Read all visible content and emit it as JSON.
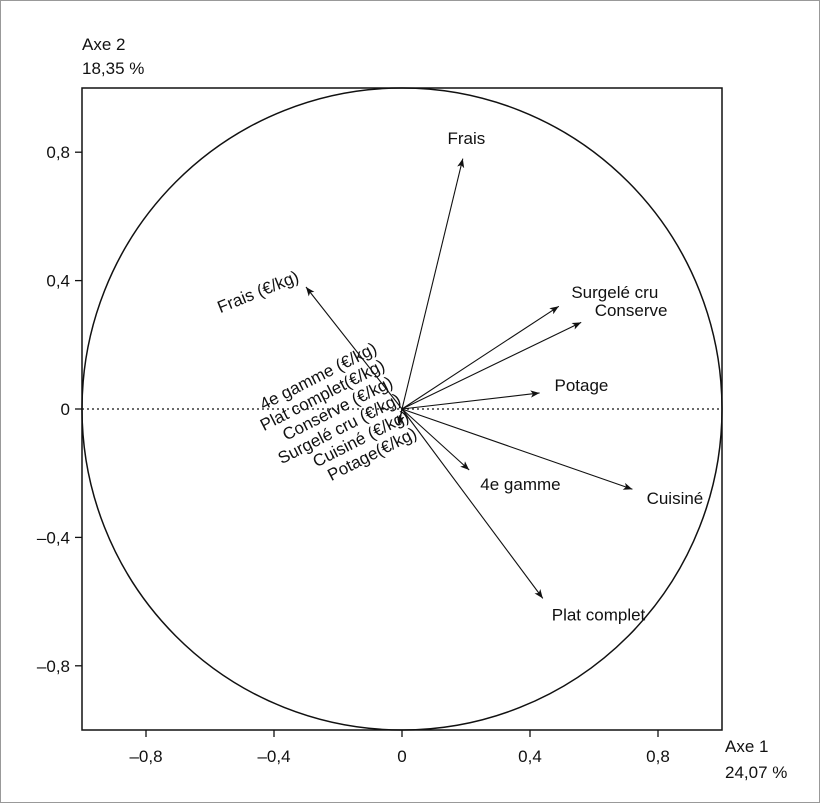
{
  "chart_data": {
    "type": "correlation-circle",
    "x_label": "Axe 1",
    "x_sublabel": "24,07 %",
    "y_label": "Axe 2",
    "y_sublabel": "18,35 %",
    "xlim": [
      -1,
      1
    ],
    "ylim": [
      -1,
      1
    ],
    "xticks": [
      {
        "value": -0.8,
        "label": "–0,8"
      },
      {
        "value": -0.4,
        "label": "–0,4"
      },
      0,
      {
        "value": 0.4,
        "label": "0,4"
      },
      {
        "value": 0.8,
        "label": "0,8"
      }
    ],
    "yticks": [
      {
        "value": -0.8,
        "label": "–0,8"
      },
      {
        "value": -0.4,
        "label": "–0,4"
      },
      0,
      {
        "value": 0.4,
        "label": "0,4"
      },
      {
        "value": 0.8,
        "label": "0,8"
      }
    ],
    "color": "#111111",
    "vectors": [
      {
        "name": "Frais",
        "x": 0.19,
        "y": 0.78
      },
      {
        "name": "Frais (€/kg)",
        "x": -0.3,
        "y": 0.38
      },
      {
        "name": "Surgelé cru",
        "x": 0.49,
        "y": 0.32
      },
      {
        "name": "Conserve",
        "x": 0.56,
        "y": 0.27
      },
      {
        "name": "Potage",
        "x": 0.43,
        "y": 0.05
      },
      {
        "name": "4e gamme",
        "x": 0.21,
        "y": -0.19
      },
      {
        "name": "Cuisiné",
        "x": 0.72,
        "y": -0.25
      },
      {
        "name": "Plat complet",
        "x": 0.44,
        "y": -0.59
      },
      {
        "name": "4e gamme (€/kg)",
        "x": -0.01,
        "y": -0.05
      },
      {
        "name": "Plat complet(€/kg)",
        "x": -0.01,
        "y": -0.05
      },
      {
        "name": "Conserve (€/kg)",
        "x": -0.01,
        "y": -0.05
      },
      {
        "name": "Surgelé cru (€/kg)",
        "x": -0.01,
        "y": -0.05
      },
      {
        "name": "Cuisiné (€/kg)",
        "x": -0.01,
        "y": -0.05
      },
      {
        "name": "Potage(€/kg)",
        "x": -0.01,
        "y": -0.05
      }
    ]
  }
}
